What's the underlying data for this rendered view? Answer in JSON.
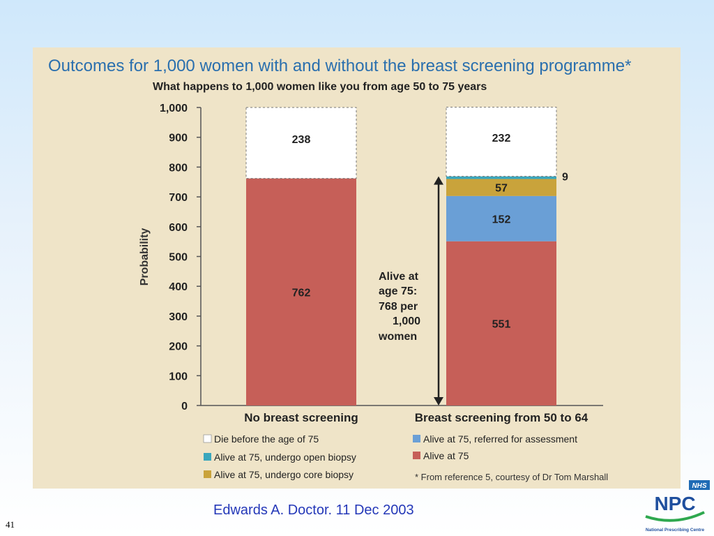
{
  "slide_number": "41",
  "caption": "Edwards A. Doctor. 11 Dec 2003",
  "logo": {
    "nhs": "NHS",
    "npc": "NPC",
    "org": "National Prescribing Centre"
  },
  "colors": {
    "die": "#ffffff",
    "open_biopsy": "#3aa7bd",
    "core_biopsy": "#c9a33b",
    "referred": "#6a9fd6",
    "alive": "#c65f58",
    "title": "#2a6fae"
  },
  "chart_data": {
    "type": "bar",
    "stacked": true,
    "title": "Outcomes for 1,000 women with and without the breast screening programme*",
    "subtitle": "What happens to 1,000 women like you from age 50 to 75 years",
    "ylabel": "Probability",
    "xlabel": "",
    "ylim": [
      0,
      1000
    ],
    "yticks": [
      "0",
      "100",
      "200",
      "300",
      "400",
      "500",
      "600",
      "700",
      "800",
      "900",
      "1,000"
    ],
    "grid": false,
    "categories": [
      "No breast screening",
      "Breast screening from 50 to 64"
    ],
    "series": [
      {
        "name": "Alive at 75",
        "values": [
          762,
          551
        ],
        "labels": [
          "762",
          "551"
        ],
        "color": "#c65f58"
      },
      {
        "name": "Alive at 75, referred for assessment",
        "values": [
          0,
          152
        ],
        "labels": [
          "",
          "152"
        ],
        "color": "#6a9fd6"
      },
      {
        "name": "Alive at 75, undergo core biopsy",
        "values": [
          0,
          57
        ],
        "labels": [
          "",
          "57"
        ],
        "color": "#c9a33b"
      },
      {
        "name": "Alive at 75, undergo open biopsy",
        "values": [
          0,
          9
        ],
        "labels": [
          "",
          "9"
        ],
        "color": "#3aa7bd"
      },
      {
        "name": "Die before the age of 75",
        "values": [
          238,
          232
        ],
        "labels": [
          "238",
          "232"
        ],
        "color": "#ffffff"
      }
    ],
    "legend": [
      {
        "label": "Die before the age of 75",
        "color": "#ffffff"
      },
      {
        "label": "Alive at 75, undergo open biopsy",
        "color": "#3aa7bd"
      },
      {
        "label": "Alive at 75, undergo core biopsy",
        "color": "#c9a33b"
      },
      {
        "label": "Alive at 75, referred for assessment",
        "color": "#6a9fd6"
      },
      {
        "label": "Alive at 75",
        "color": "#c65f58"
      }
    ],
    "annotation": "Alive at age 75: 768 per 1,000 women",
    "annotation_lines": [
      "Alive at",
      "age 75:",
      "768 per",
      "1,000",
      "women"
    ],
    "footnote": "* From reference 5, courtesy of Dr Tom Marshall"
  }
}
